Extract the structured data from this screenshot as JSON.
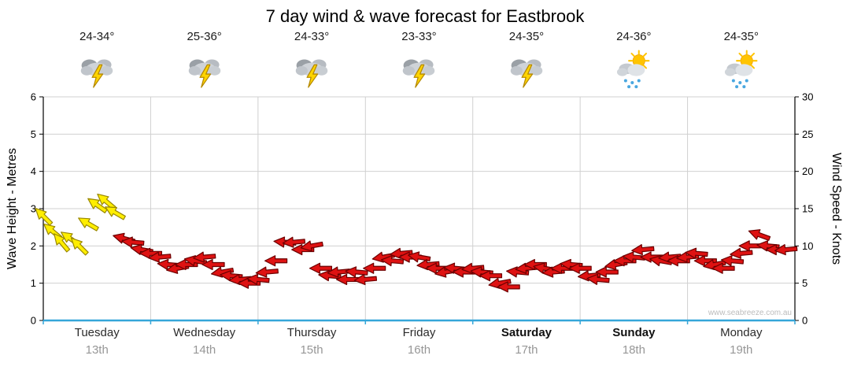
{
  "title": "7 day wind & wave forecast for Eastbrook",
  "watermark": "www.seabreeze.com.au",
  "axes": {
    "left_label": "Wave Height - Metres",
    "right_label": "Wind Speed - Knots"
  },
  "days": [
    {
      "name": "Tuesday",
      "date": "13th",
      "temp": "24-34°",
      "icon": "storm",
      "bold": false
    },
    {
      "name": "Wednesday",
      "date": "14th",
      "temp": "25-36°",
      "icon": "storm",
      "bold": false
    },
    {
      "name": "Thursday",
      "date": "15th",
      "temp": "24-33°",
      "icon": "storm",
      "bold": false
    },
    {
      "name": "Friday",
      "date": "16th",
      "temp": "23-33°",
      "icon": "storm",
      "bold": false
    },
    {
      "name": "Saturday",
      "date": "17th",
      "temp": "24-35°",
      "icon": "storm",
      "bold": true
    },
    {
      "name": "Sunday",
      "date": "18th",
      "temp": "24-36°",
      "icon": "sun-shower",
      "bold": true
    },
    {
      "name": "Monday",
      "date": "19th",
      "temp": "24-35°",
      "icon": "sun-shower",
      "bold": false
    }
  ],
  "chart_data": {
    "type": "scatter",
    "subtype": "wind-direction-arrows",
    "title": "7 day wind & wave forecast for Eastbrook",
    "x_unit": "hours",
    "x_range": [
      0,
      168
    ],
    "grid": true,
    "left_axis": {
      "label": "Wave Height - Metres",
      "min": 0,
      "max": 6,
      "tick_step": 1
    },
    "right_axis": {
      "label": "Wind Speed - Knots",
      "min": 0,
      "max": 30,
      "tick_step": 5
    },
    "arrow_colors": {
      "y": "#ffee00",
      "r": "#de1212"
    },
    "arrow_strokes": {
      "y": "#998800",
      "r": "#6b0000"
    },
    "points_format": [
      "hour",
      "wind_speed_knots",
      "arrow_direction_deg",
      "color"
    ],
    "points": [
      [
        0,
        14,
        225,
        "y"
      ],
      [
        2,
        12,
        220,
        "y"
      ],
      [
        4,
        10.5,
        230,
        "y"
      ],
      [
        6,
        11,
        215,
        "y"
      ],
      [
        8,
        10,
        225,
        "y"
      ],
      [
        10,
        13,
        210,
        "y"
      ],
      [
        12,
        15.5,
        215,
        "y"
      ],
      [
        14,
        16,
        220,
        "y"
      ],
      [
        16,
        14.5,
        210,
        "y"
      ],
      [
        18,
        11,
        195,
        "r"
      ],
      [
        20,
        10.5,
        185,
        "r"
      ],
      [
        22,
        9.5,
        190,
        "r"
      ],
      [
        24,
        9,
        180,
        "r"
      ],
      [
        26,
        8.5,
        175,
        "r"
      ],
      [
        28,
        7.5,
        185,
        "r"
      ],
      [
        30,
        7,
        170,
        "r"
      ],
      [
        32,
        7.5,
        180,
        "r"
      ],
      [
        34,
        8,
        190,
        "r"
      ],
      [
        36,
        8.5,
        175,
        "r"
      ],
      [
        38,
        7.5,
        180,
        "r"
      ],
      [
        40,
        6.5,
        170,
        "r"
      ],
      [
        42,
        6,
        185,
        "r"
      ],
      [
        44,
        5.5,
        175,
        "r"
      ],
      [
        46,
        5,
        180,
        "r"
      ],
      [
        48,
        5.5,
        185,
        "r"
      ],
      [
        50,
        6.5,
        175,
        "r"
      ],
      [
        52,
        8,
        180,
        "r"
      ],
      [
        54,
        10.5,
        185,
        "r"
      ],
      [
        56,
        10.5,
        175,
        "r"
      ],
      [
        58,
        9.5,
        180,
        "r"
      ],
      [
        60,
        10,
        170,
        "r"
      ],
      [
        62,
        7,
        180,
        "r"
      ],
      [
        64,
        6,
        185,
        "r"
      ],
      [
        66,
        6.5,
        175,
        "r"
      ],
      [
        68,
        5.5,
        180,
        "r"
      ],
      [
        70,
        6.5,
        185,
        "r"
      ],
      [
        72,
        5.5,
        175,
        "r"
      ],
      [
        74,
        7,
        180,
        "r"
      ],
      [
        76,
        8.5,
        170,
        "r"
      ],
      [
        78,
        8,
        185,
        "r"
      ],
      [
        80,
        9,
        175,
        "r"
      ],
      [
        82,
        8.5,
        180,
        "r"
      ],
      [
        84,
        8.5,
        190,
        "r"
      ],
      [
        86,
        7.5,
        175,
        "r"
      ],
      [
        88,
        7,
        180,
        "r"
      ],
      [
        90,
        6.5,
        170,
        "r"
      ],
      [
        92,
        7,
        185,
        "r"
      ],
      [
        94,
        6.5,
        180,
        "r"
      ],
      [
        96,
        7,
        175,
        "r"
      ],
      [
        98,
        6.5,
        185,
        "r"
      ],
      [
        100,
        6,
        180,
        "r"
      ],
      [
        102,
        5,
        170,
        "r"
      ],
      [
        104,
        4.5,
        180,
        "r"
      ],
      [
        106,
        6.5,
        185,
        "r"
      ],
      [
        108,
        7,
        175,
        "r"
      ],
      [
        110,
        7.5,
        180,
        "r"
      ],
      [
        112,
        7,
        190,
        "r"
      ],
      [
        114,
        6.5,
        175,
        "r"
      ],
      [
        116,
        7,
        180,
        "r"
      ],
      [
        118,
        7.5,
        185,
        "r"
      ],
      [
        120,
        7,
        180,
        "r"
      ],
      [
        122,
        6,
        175,
        "r"
      ],
      [
        124,
        5.5,
        185,
        "r"
      ],
      [
        126,
        6.5,
        180,
        "r"
      ],
      [
        128,
        7.5,
        170,
        "r"
      ],
      [
        130,
        8,
        180,
        "r"
      ],
      [
        132,
        8.5,
        185,
        "r"
      ],
      [
        134,
        9.5,
        175,
        "r"
      ],
      [
        136,
        8.5,
        180,
        "r"
      ],
      [
        138,
        8,
        190,
        "r"
      ],
      [
        140,
        8.5,
        175,
        "r"
      ],
      [
        142,
        8,
        180,
        "r"
      ],
      [
        144,
        8.5,
        175,
        "r"
      ],
      [
        146,
        9,
        185,
        "r"
      ],
      [
        148,
        8,
        180,
        "r"
      ],
      [
        150,
        7.5,
        170,
        "r"
      ],
      [
        152,
        7,
        180,
        "r"
      ],
      [
        154,
        8,
        185,
        "r"
      ],
      [
        156,
        9,
        175,
        "r"
      ],
      [
        158,
        10,
        180,
        "r"
      ],
      [
        160,
        11.5,
        200,
        "r"
      ],
      [
        162,
        10,
        185,
        "r"
      ],
      [
        164,
        9.5,
        180,
        "r"
      ],
      [
        166,
        9.5,
        175,
        "r"
      ]
    ]
  }
}
